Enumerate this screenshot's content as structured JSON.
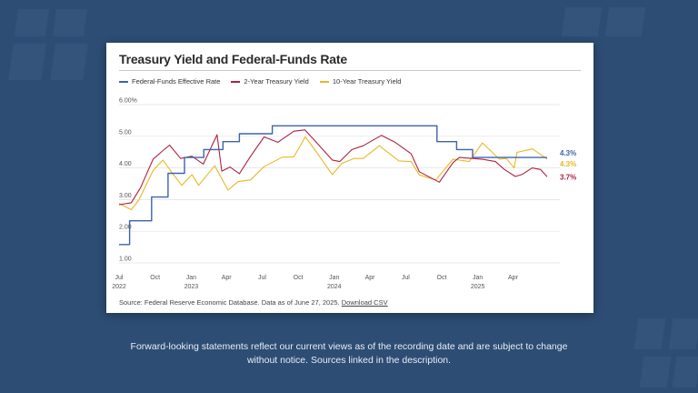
{
  "chart_data": {
    "type": "line",
    "title": "Treasury Yield and Federal-Funds Rate",
    "xlabel": "",
    "ylabel": "",
    "ylim": [
      1.0,
      6.0
    ],
    "y_ticks": [
      "1.00",
      "2.00",
      "3.00",
      "4.00",
      "5.00",
      "6.00%"
    ],
    "x_ticks": [
      {
        "month": "Jul",
        "year": "2022",
        "date": "2022-07-01"
      },
      {
        "month": "Oct",
        "year": "",
        "date": "2022-10-01"
      },
      {
        "month": "Jan",
        "year": "2023",
        "date": "2023-01-01"
      },
      {
        "month": "Apr",
        "year": "",
        "date": "2023-04-01"
      },
      {
        "month": "Jul",
        "year": "",
        "date": "2023-07-01"
      },
      {
        "month": "Oct",
        "year": "",
        "date": "2023-10-01"
      },
      {
        "month": "Jan",
        "year": "2024",
        "date": "2024-01-01"
      },
      {
        "month": "Apr",
        "year": "",
        "date": "2024-04-01"
      },
      {
        "month": "Jul",
        "year": "",
        "date": "2024-07-01"
      },
      {
        "month": "Oct",
        "year": "",
        "date": "2024-10-01"
      },
      {
        "month": "Jan",
        "year": "2025",
        "date": "2025-01-01"
      },
      {
        "month": "Apr",
        "year": "",
        "date": "2025-04-01"
      }
    ],
    "x_range": [
      "2022-07-01",
      "2025-06-27"
    ],
    "grid": "horizontal",
    "legend_position": "top-left",
    "series": [
      {
        "name": "Federal-Funds Effective Rate",
        "color": "#3d63ad",
        "end_label": "4.3%",
        "step": true,
        "points": [
          [
            "2022-07-01",
            1.58
          ],
          [
            "2022-07-28",
            2.33
          ],
          [
            "2022-09-22",
            3.08
          ],
          [
            "2022-11-03",
            3.83
          ],
          [
            "2022-12-15",
            4.33
          ],
          [
            "2023-02-02",
            4.58
          ],
          [
            "2023-03-23",
            4.83
          ],
          [
            "2023-05-04",
            5.08
          ],
          [
            "2023-07-27",
            5.33
          ],
          [
            "2024-09-19",
            4.83
          ],
          [
            "2024-11-08",
            4.58
          ],
          [
            "2024-12-19",
            4.33
          ],
          [
            "2025-06-27",
            4.33
          ]
        ]
      },
      {
        "name": "2-Year Treasury Yield",
        "color": "#b0203f",
        "end_label": "3.7%",
        "points": [
          [
            "2022-07-01",
            2.84
          ],
          [
            "2022-08-01",
            2.9
          ],
          [
            "2022-08-25",
            3.38
          ],
          [
            "2022-09-26",
            4.28
          ],
          [
            "2022-10-21",
            4.55
          ],
          [
            "2022-11-07",
            4.72
          ],
          [
            "2022-12-05",
            4.3
          ],
          [
            "2023-01-03",
            4.37
          ],
          [
            "2023-02-01",
            4.12
          ],
          [
            "2023-03-08",
            5.05
          ],
          [
            "2023-03-20",
            3.9
          ],
          [
            "2023-04-10",
            4.03
          ],
          [
            "2023-05-04",
            3.82
          ],
          [
            "2023-06-01",
            4.36
          ],
          [
            "2023-07-06",
            4.98
          ],
          [
            "2023-08-10",
            4.81
          ],
          [
            "2023-09-20",
            5.16
          ],
          [
            "2023-10-18",
            5.2
          ],
          [
            "2023-11-14",
            4.84
          ],
          [
            "2023-12-27",
            4.25
          ],
          [
            "2024-01-15",
            4.2
          ],
          [
            "2024-02-15",
            4.58
          ],
          [
            "2024-03-15",
            4.7
          ],
          [
            "2024-04-30",
            5.03
          ],
          [
            "2024-06-03",
            4.82
          ],
          [
            "2024-07-15",
            4.45
          ],
          [
            "2024-08-05",
            3.88
          ],
          [
            "2024-09-25",
            3.55
          ],
          [
            "2024-10-30",
            4.17
          ],
          [
            "2024-11-15",
            4.33
          ],
          [
            "2024-12-20",
            4.3
          ],
          [
            "2025-01-15",
            4.27
          ],
          [
            "2025-02-15",
            4.2
          ],
          [
            "2025-03-10",
            3.95
          ],
          [
            "2025-04-07",
            3.73
          ],
          [
            "2025-04-25",
            3.8
          ],
          [
            "2025-05-20",
            4.0
          ],
          [
            "2025-06-10",
            3.95
          ],
          [
            "2025-06-27",
            3.72
          ]
        ]
      },
      {
        "name": "10-Year Treasury Yield",
        "color": "#e9b824",
        "end_label": "4.3%",
        "points": [
          [
            "2022-07-01",
            2.88
          ],
          [
            "2022-08-01",
            2.68
          ],
          [
            "2022-08-20",
            2.98
          ],
          [
            "2022-09-26",
            3.92
          ],
          [
            "2022-10-21",
            4.25
          ],
          [
            "2022-11-15",
            3.82
          ],
          [
            "2022-12-08",
            3.45
          ],
          [
            "2023-01-03",
            3.79
          ],
          [
            "2023-01-20",
            3.45
          ],
          [
            "2023-03-02",
            4.07
          ],
          [
            "2023-04-05",
            3.3
          ],
          [
            "2023-05-01",
            3.57
          ],
          [
            "2023-06-01",
            3.62
          ],
          [
            "2023-07-06",
            4.04
          ],
          [
            "2023-08-21",
            4.34
          ],
          [
            "2023-09-20",
            4.35
          ],
          [
            "2023-10-19",
            4.98
          ],
          [
            "2023-11-15",
            4.53
          ],
          [
            "2023-12-27",
            3.79
          ],
          [
            "2024-01-20",
            4.14
          ],
          [
            "2024-02-20",
            4.3
          ],
          [
            "2024-03-15",
            4.3
          ],
          [
            "2024-04-25",
            4.7
          ],
          [
            "2024-06-14",
            4.22
          ],
          [
            "2024-07-15",
            4.2
          ],
          [
            "2024-08-05",
            3.78
          ],
          [
            "2024-09-16",
            3.62
          ],
          [
            "2024-10-30",
            4.28
          ],
          [
            "2024-12-10",
            4.2
          ],
          [
            "2025-01-13",
            4.79
          ],
          [
            "2025-02-25",
            4.28
          ],
          [
            "2025-03-15",
            4.3
          ],
          [
            "2025-04-04",
            4.0
          ],
          [
            "2025-04-11",
            4.49
          ],
          [
            "2025-05-21",
            4.6
          ],
          [
            "2025-06-27",
            4.28
          ]
        ]
      }
    ],
    "source_text": "Source: Federal Reserve Economic Database. Data as of June 27, 2025.",
    "source_link": "Download CSV"
  },
  "footer": {
    "disclaimer_line1": "Forward-looking statements reflect our current views as of the recording date and are subject to change",
    "disclaimer_line2": "without notice. Sources linked in the description."
  }
}
